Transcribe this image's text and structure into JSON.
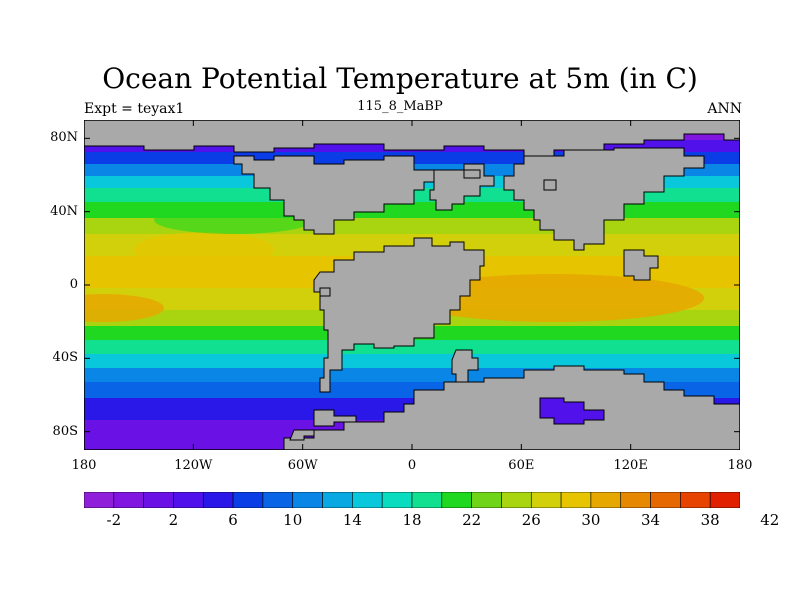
{
  "title": "Ocean Potential Temperature at 5m (in C)",
  "subtitle_left": "Expt = teyax1",
  "subtitle_center": "115_8_MaBP",
  "subtitle_right": "ANN",
  "map": {
    "lon_range": [
      -180,
      180
    ],
    "lat_range": [
      -90,
      90
    ],
    "y_ticks": [
      {
        "value": 80,
        "label": "80N"
      },
      {
        "value": 40,
        "label": "40N"
      },
      {
        "value": 0,
        "label": "0"
      },
      {
        "value": -40,
        "label": "40S"
      },
      {
        "value": -80,
        "label": "80S"
      }
    ],
    "x_ticks": [
      {
        "value": -180,
        "label": "180"
      },
      {
        "value": -120,
        "label": "120W"
      },
      {
        "value": -60,
        "label": "60W"
      },
      {
        "value": 0,
        "label": "0"
      },
      {
        "value": 60,
        "label": "60E"
      },
      {
        "value": 120,
        "label": "120E"
      },
      {
        "value": 180,
        "label": "180"
      }
    ],
    "land_color": "#a9a9a9",
    "land_outline": "#000000"
  },
  "colorbar": {
    "colors": [
      "#8f1fd9",
      "#8016e0",
      "#6a12e6",
      "#5011ea",
      "#2a18e8",
      "#0b3de6",
      "#0a64e6",
      "#0a86e6",
      "#0aa8e2",
      "#0ac8dc",
      "#0adcc0",
      "#10e090",
      "#20d820",
      "#70d418",
      "#a8d410",
      "#d2d00a",
      "#e6c400",
      "#e6a800",
      "#e68800",
      "#e66800",
      "#e64400",
      "#e02000"
    ],
    "labels": [
      {
        "index": 1,
        "text": "-2"
      },
      {
        "index": 3,
        "text": "2"
      },
      {
        "index": 5,
        "text": "6"
      },
      {
        "index": 7,
        "text": "10"
      },
      {
        "index": 9,
        "text": "14"
      },
      {
        "index": 11,
        "text": "18"
      },
      {
        "index": 13,
        "text": "22"
      },
      {
        "index": 15,
        "text": "26"
      },
      {
        "index": 17,
        "text": "30"
      },
      {
        "index": 19,
        "text": "34"
      },
      {
        "index": 21,
        "text": "38"
      },
      {
        "index": 23,
        "text": "42"
      }
    ]
  }
}
